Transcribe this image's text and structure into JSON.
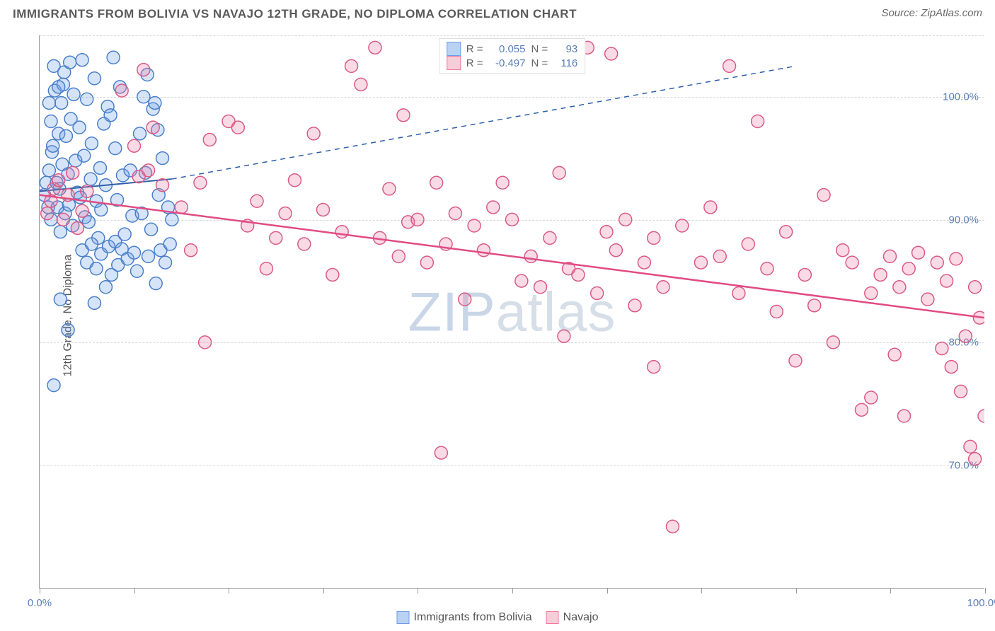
{
  "title": "IMMIGRANTS FROM BOLIVIA VS NAVAJO 12TH GRADE, NO DIPLOMA CORRELATION CHART",
  "source": "Source: ZipAtlas.com",
  "watermark": {
    "part1": "ZIP",
    "part2": "atlas"
  },
  "ylabel": "12th Grade, No Diploma",
  "chart": {
    "type": "scatter",
    "background_color": "#ffffff",
    "grid_color": "#d8d8d8",
    "axis_color": "#999999",
    "xlim": [
      0,
      100
    ],
    "ylim": [
      60,
      105
    ],
    "xtick_positions": [
      0,
      10,
      20,
      30,
      40,
      50,
      60,
      70,
      80,
      90,
      100
    ],
    "xtick_labels": {
      "0": "0.0%",
      "100": "100.0%"
    },
    "ytick_positions": [
      70,
      80,
      90,
      100
    ],
    "ytick_labels": {
      "70": "70.0%",
      "80": "80.0%",
      "90": "90.0%",
      "100": "100.0%"
    },
    "marker_radius": 9,
    "marker_stroke_width": 1.5,
    "marker_fill_opacity": 0.28,
    "series": [
      {
        "name": "Immigrants from Bolivia",
        "color": "#6d9de8",
        "stroke": "#4a7fc9",
        "regression": {
          "R": 0.055,
          "N": 93,
          "solid": {
            "x1": 0,
            "y1": 92.3,
            "x2": 14,
            "y2": 93.3
          },
          "dashed": {
            "x1": 14,
            "y1": 93.3,
            "x2": 80,
            "y2": 102.5
          },
          "line_color": "#2e5fa8",
          "line_width": 2
        },
        "points": [
          [
            0.5,
            92
          ],
          [
            0.7,
            93
          ],
          [
            0.9,
            91
          ],
          [
            1.0,
            94
          ],
          [
            1.2,
            98
          ],
          [
            1.3,
            95.5
          ],
          [
            1.5,
            102.5
          ],
          [
            1.6,
            100.5
          ],
          [
            1.2,
            90
          ],
          [
            1.4,
            96
          ],
          [
            1.8,
            93
          ],
          [
            1.9,
            91
          ],
          [
            2.0,
            97
          ],
          [
            2.1,
            92.5
          ],
          [
            2.3,
            99.5
          ],
          [
            2.5,
            101
          ],
          [
            2.6,
            102
          ],
          [
            2.2,
            89
          ],
          [
            2.4,
            94.5
          ],
          [
            2.7,
            90.5
          ],
          [
            2.8,
            96.8
          ],
          [
            3.0,
            93.7
          ],
          [
            3.1,
            91.2
          ],
          [
            3.2,
            102.8
          ],
          [
            3.3,
            98.2
          ],
          [
            3.5,
            89.5
          ],
          [
            3.6,
            100.2
          ],
          [
            3.8,
            94.8
          ],
          [
            4.0,
            92.2
          ],
          [
            4.2,
            97.5
          ],
          [
            4.3,
            91.8
          ],
          [
            4.5,
            103
          ],
          [
            4.7,
            95.2
          ],
          [
            4.8,
            90.2
          ],
          [
            5.0,
            99.8
          ],
          [
            5.2,
            89.8
          ],
          [
            5.4,
            93.3
          ],
          [
            5.5,
            96.2
          ],
          [
            5.8,
            101.5
          ],
          [
            6.0,
            91.5
          ],
          [
            6.2,
            88.5
          ],
          [
            6.4,
            94.2
          ],
          [
            6.5,
            90.8
          ],
          [
            6.8,
            97.8
          ],
          [
            7.0,
            92.8
          ],
          [
            7.2,
            99.2
          ],
          [
            7.5,
            98.5
          ],
          [
            7.8,
            103.2
          ],
          [
            8.0,
            95.8
          ],
          [
            8.2,
            91.6
          ],
          [
            8.5,
            100.8
          ],
          [
            8.8,
            93.6
          ],
          [
            4.5,
            87.5
          ],
          [
            5.0,
            86.5
          ],
          [
            5.5,
            88.0
          ],
          [
            6.0,
            86.0
          ],
          [
            6.5,
            87.2
          ],
          [
            7.0,
            84.5
          ],
          [
            7.3,
            87.8
          ],
          [
            7.6,
            85.5
          ],
          [
            8.0,
            88.2
          ],
          [
            8.3,
            86.3
          ],
          [
            8.7,
            87.6
          ],
          [
            9.0,
            88.8
          ],
          [
            9.3,
            86.8
          ],
          [
            9.6,
            94.0
          ],
          [
            9.8,
            90.3
          ],
          [
            10.0,
            87.3
          ],
          [
            10.3,
            85.8
          ],
          [
            2.2,
            83.5
          ],
          [
            3.0,
            81.0
          ],
          [
            1.5,
            76.5
          ],
          [
            5.8,
            83.2
          ],
          [
            10.8,
            90.5
          ],
          [
            11.2,
            93.8
          ],
          [
            11.5,
            87.0
          ],
          [
            11.8,
            89.2
          ],
          [
            12.0,
            99.0
          ],
          [
            12.3,
            84.8
          ],
          [
            12.6,
            92.0
          ],
          [
            12.8,
            87.5
          ],
          [
            13.0,
            95.0
          ],
          [
            13.3,
            86.5
          ],
          [
            13.6,
            91.0
          ],
          [
            13.8,
            88.0
          ],
          [
            14.0,
            90.0
          ],
          [
            10.6,
            97.0
          ],
          [
            11.0,
            100.0
          ],
          [
            11.4,
            101.8
          ],
          [
            12.2,
            99.5
          ],
          [
            12.5,
            97.3
          ],
          [
            1.0,
            99.5
          ],
          [
            2.0,
            100.8
          ]
        ]
      },
      {
        "name": "Navajo",
        "color": "#ed7ba0",
        "stroke": "#d95b85",
        "regression": {
          "R": -0.497,
          "N": 116,
          "solid": {
            "x1": 0,
            "y1": 92,
            "x2": 100,
            "y2": 82
          },
          "line_color": "#e14b82",
          "line_width": 2.5
        },
        "points": [
          [
            0.8,
            90.5
          ],
          [
            1.2,
            91.5
          ],
          [
            1.5,
            92.5
          ],
          [
            2.0,
            93.2
          ],
          [
            2.5,
            90.0
          ],
          [
            3.0,
            92.0
          ],
          [
            3.5,
            93.8
          ],
          [
            4.0,
            89.3
          ],
          [
            4.5,
            90.7
          ],
          [
            5.0,
            92.3
          ],
          [
            8.7,
            100.5
          ],
          [
            10.0,
            96.0
          ],
          [
            10.5,
            93.5
          ],
          [
            11.0,
            102.2
          ],
          [
            11.5,
            94.0
          ],
          [
            12.0,
            97.5
          ],
          [
            13.0,
            92.8
          ],
          [
            15.0,
            91.0
          ],
          [
            16.0,
            87.5
          ],
          [
            17.0,
            93.0
          ],
          [
            17.5,
            80.0
          ],
          [
            18.0,
            96.5
          ],
          [
            20.0,
            98.0
          ],
          [
            21.0,
            97.5
          ],
          [
            22.0,
            89.5
          ],
          [
            23.0,
            91.5
          ],
          [
            24.0,
            86.0
          ],
          [
            25.0,
            88.5
          ],
          [
            26.0,
            90.5
          ],
          [
            27.0,
            93.2
          ],
          [
            28.0,
            88.0
          ],
          [
            29.0,
            97.0
          ],
          [
            30.0,
            90.8
          ],
          [
            31.0,
            85.5
          ],
          [
            32.0,
            89.0
          ],
          [
            33.0,
            102.5
          ],
          [
            34.0,
            101.0
          ],
          [
            35.5,
            104.0
          ],
          [
            36.0,
            88.5
          ],
          [
            37.0,
            92.5
          ],
          [
            38.0,
            87.0
          ],
          [
            38.5,
            98.5
          ],
          [
            39.0,
            89.8
          ],
          [
            40.0,
            90.0
          ],
          [
            41.0,
            86.5
          ],
          [
            42.0,
            93.0
          ],
          [
            42.5,
            71.0
          ],
          [
            43.0,
            88.0
          ],
          [
            44.0,
            90.5
          ],
          [
            45.0,
            83.5
          ],
          [
            46.0,
            89.5
          ],
          [
            47.0,
            87.5
          ],
          [
            48.0,
            91.0
          ],
          [
            49.0,
            93.0
          ],
          [
            50.0,
            90.0
          ],
          [
            51.0,
            85.0
          ],
          [
            52.0,
            87.0
          ],
          [
            53.0,
            84.5
          ],
          [
            54.0,
            88.5
          ],
          [
            55.0,
            93.8
          ],
          [
            55.5,
            80.5
          ],
          [
            56.0,
            86.0
          ],
          [
            57.0,
            85.5
          ],
          [
            58.0,
            104.0
          ],
          [
            59.0,
            84.0
          ],
          [
            60.0,
            89.0
          ],
          [
            60.5,
            103.5
          ],
          [
            61.0,
            87.5
          ],
          [
            62.0,
            90.0
          ],
          [
            63.0,
            83.0
          ],
          [
            64.0,
            86.5
          ],
          [
            65.0,
            88.5
          ],
          [
            65.0,
            78.0
          ],
          [
            66.0,
            84.5
          ],
          [
            67.0,
            65.0
          ],
          [
            68.0,
            89.5
          ],
          [
            70.0,
            86.5
          ],
          [
            71.0,
            91.0
          ],
          [
            72.0,
            87.0
          ],
          [
            73.0,
            102.5
          ],
          [
            74.0,
            84.0
          ],
          [
            75.0,
            88.0
          ],
          [
            76.0,
            98.0
          ],
          [
            77.0,
            86.0
          ],
          [
            78.0,
            82.5
          ],
          [
            79.0,
            89.0
          ],
          [
            80.0,
            78.5
          ],
          [
            81.0,
            85.5
          ],
          [
            82.0,
            83.0
          ],
          [
            83.0,
            92.0
          ],
          [
            84.0,
            80.0
          ],
          [
            85.0,
            87.5
          ],
          [
            86.0,
            86.5
          ],
          [
            87.0,
            74.5
          ],
          [
            88.0,
            84.0
          ],
          [
            88.0,
            75.5
          ],
          [
            89.0,
            85.5
          ],
          [
            90.0,
            87.0
          ],
          [
            90.5,
            79.0
          ],
          [
            91.0,
            84.5
          ],
          [
            91.5,
            74.0
          ],
          [
            92.0,
            86.0
          ],
          [
            93.0,
            87.3
          ],
          [
            94.0,
            83.5
          ],
          [
            95.0,
            86.5
          ],
          [
            95.5,
            79.5
          ],
          [
            96.0,
            85.0
          ],
          [
            96.5,
            78.0
          ],
          [
            97.0,
            86.8
          ],
          [
            97.5,
            76.0
          ],
          [
            98.0,
            80.5
          ],
          [
            99.0,
            70.5
          ],
          [
            99.5,
            82.0
          ],
          [
            100.0,
            74.0
          ],
          [
            99.0,
            84.5
          ],
          [
            98.5,
            71.5
          ]
        ]
      }
    ]
  },
  "legend_top": {
    "rows": [
      {
        "swatch_fill": "#b9d2f2",
        "swatch_stroke": "#6d9de8",
        "r_label": "R =",
        "r_val": "0.055",
        "n_label": "N =",
        "n_val": "93"
      },
      {
        "swatch_fill": "#f7cdd9",
        "swatch_stroke": "#ed7ba0",
        "r_label": "R =",
        "r_val": "-0.497",
        "n_label": "N =",
        "n_val": "116"
      }
    ]
  },
  "legend_bottom": [
    {
      "swatch_fill": "#b9d2f2",
      "swatch_stroke": "#6d9de8",
      "label": "Immigrants from Bolivia"
    },
    {
      "swatch_fill": "#f7cdd9",
      "swatch_stroke": "#ed7ba0",
      "label": "Navajo"
    }
  ]
}
